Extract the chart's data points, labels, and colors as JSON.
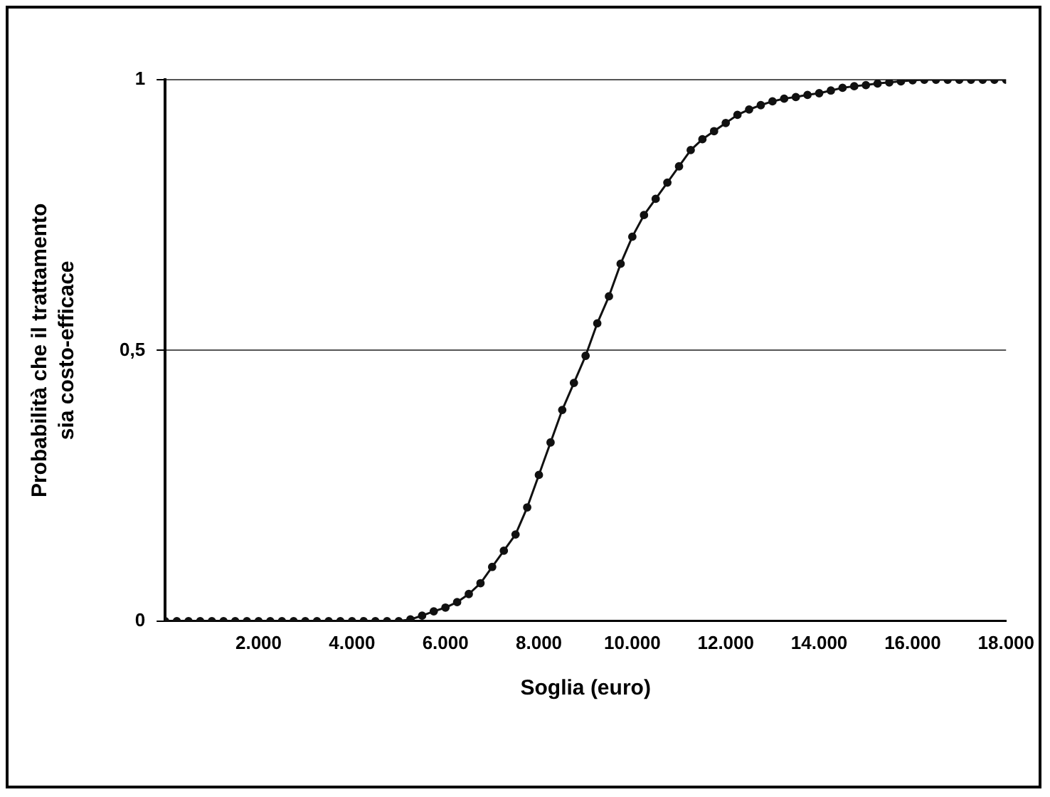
{
  "chart_data": {
    "type": "line",
    "xlabel": "Soglia (euro)",
    "ylabel": "Probabilità che il trattamento sia costo-efficace",
    "x": [
      0,
      250,
      500,
      750,
      1000,
      1250,
      1500,
      1750,
      2000,
      2250,
      2500,
      2750,
      3000,
      3250,
      3500,
      3750,
      4000,
      4250,
      4500,
      4750,
      5000,
      5250,
      5500,
      5750,
      6000,
      6250,
      6500,
      6750,
      7000,
      7250,
      7500,
      7750,
      8000,
      8250,
      8500,
      8750,
      9000,
      9250,
      9500,
      9750,
      10000,
      10250,
      10500,
      10750,
      11000,
      11250,
      11500,
      11750,
      12000,
      12250,
      12500,
      12750,
      13000,
      13250,
      13500,
      13750,
      14000,
      14250,
      14500,
      14750,
      15000,
      15250,
      15500,
      15750,
      16000,
      16250,
      16500,
      16750,
      17000,
      17250,
      17500,
      17750,
      18000
    ],
    "series": [
      {
        "color": "#111111",
        "values": [
          0,
          0,
          0,
          0,
          0,
          0,
          0,
          0,
          0,
          0,
          0,
          0,
          0,
          0,
          0,
          0,
          0,
          0,
          0,
          0,
          0,
          0.003,
          0.01,
          0.018,
          0.025,
          0.035,
          0.05,
          0.07,
          0.1,
          0.13,
          0.16,
          0.21,
          0.27,
          0.33,
          0.39,
          0.44,
          0.49,
          0.55,
          0.6,
          0.66,
          0.71,
          0.75,
          0.78,
          0.81,
          0.84,
          0.87,
          0.89,
          0.905,
          0.92,
          0.935,
          0.945,
          0.953,
          0.96,
          0.965,
          0.968,
          0.972,
          0.975,
          0.98,
          0.985,
          0.988,
          0.99,
          0.993,
          0.995,
          0.997,
          0.999,
          1,
          1,
          1,
          1,
          1,
          1,
          1,
          1
        ]
      }
    ],
    "xlim": [
      0,
      18000
    ],
    "xticks": [
      {
        "value": 2000,
        "label": "2.000"
      },
      {
        "value": 4000,
        "label": "4.000"
      },
      {
        "value": 6000,
        "label": "6.000"
      },
      {
        "value": 8000,
        "label": "8.000"
      },
      {
        "value": 10000,
        "label": "10.000"
      },
      {
        "value": 12000,
        "label": "12.000"
      },
      {
        "value": 14000,
        "label": "14.000"
      },
      {
        "value": 16000,
        "label": "16.000"
      },
      {
        "value": 18000,
        "label": "18.000"
      }
    ],
    "ylim": [
      0,
      1
    ],
    "yticks": [
      0,
      {
        "value": 0.5,
        "label": "0,5"
      },
      1
    ],
    "grid": "y",
    "legend": false,
    "marker": "circle",
    "line_style": "solid"
  }
}
